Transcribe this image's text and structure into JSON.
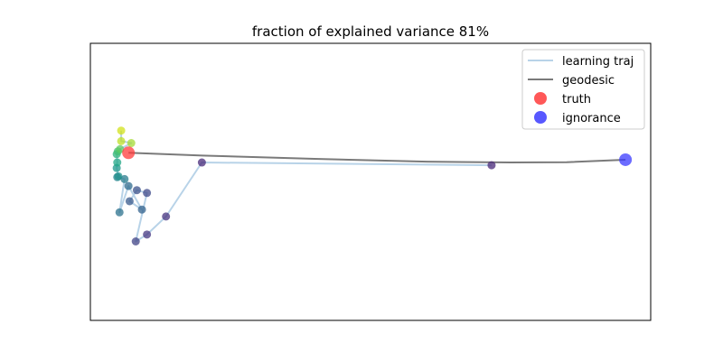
{
  "chart_data": {
    "type": "scatter",
    "title": "fraction of explained variance 81%",
    "xlabel": "",
    "ylabel": "",
    "xlim": [
      0,
      100
    ],
    "ylim": [
      0,
      100
    ],
    "grid": false,
    "ticks_visible": false,
    "legend": {
      "placement": "top-right",
      "entries": [
        {
          "label": "learning traj",
          "kind": "line",
          "color": "#b8d3e8"
        },
        {
          "label": "geodesic",
          "kind": "line",
          "color": "#7a7a7a"
        },
        {
          "label": "truth",
          "kind": "marker",
          "color": "#ff3b3b"
        },
        {
          "label": "ignorance",
          "kind": "marker",
          "color": "#3b3bff"
        }
      ]
    },
    "series": [
      {
        "name": "learning traj",
        "type": "line",
        "color": "#b8d3e8",
        "x": [
          71.6,
          19.9,
          13.5,
          10.1,
          8.1,
          10.1,
          8.3,
          7.0,
          9.2,
          6.8,
          5.2,
          6.1,
          4.8,
          5.0,
          4.7,
          4.8,
          4.7,
          4.9,
          5.3,
          7.3,
          5.5,
          5.5
        ],
        "y": [
          56.0,
          57.0,
          37.5,
          31.0,
          28.5,
          46.0,
          47.0,
          43.0,
          40.0,
          48.5,
          39.0,
          51.0,
          51.7,
          52.0,
          55.0,
          57.0,
          60.0,
          61.0,
          61.8,
          64.0,
          64.7,
          68.5
        ]
      },
      {
        "name": "learning traj points",
        "type": "scatter",
        "colors": [
          "#482878",
          "#482a7a",
          "#46337f",
          "#453781",
          "#414487",
          "#3e4989",
          "#3b528b",
          "#38598c",
          "#33638d",
          "#2f6b8e",
          "#2c728e",
          "#287c8e",
          "#25838e",
          "#21918c",
          "#1f988b",
          "#22a785",
          "#2eb37c",
          "#44bf70",
          "#5ec962",
          "#a5db36",
          "#bddf26",
          "#d2e21b"
        ],
        "x": [
          71.6,
          19.9,
          13.5,
          10.1,
          8.1,
          10.1,
          8.3,
          7.0,
          9.2,
          6.8,
          5.2,
          6.1,
          4.8,
          5.0,
          4.7,
          4.8,
          4.7,
          4.9,
          5.3,
          7.3,
          5.5,
          5.5
        ],
        "y": [
          56.0,
          57.0,
          37.5,
          31.0,
          28.5,
          46.0,
          47.0,
          43.0,
          40.0,
          48.5,
          39.0,
          51.0,
          51.7,
          52.0,
          55.0,
          57.0,
          60.0,
          61.0,
          61.8,
          64.0,
          64.7,
          68.5
        ]
      },
      {
        "name": "geodesic",
        "type": "line",
        "color": "#7a7a7a",
        "x": [
          6.8,
          20,
          40,
          60,
          75,
          85,
          95.5
        ],
        "y": [
          60.5,
          59.5,
          58.3,
          57.3,
          57.0,
          57.1,
          58.0
        ]
      },
      {
        "name": "truth",
        "type": "scatter",
        "color": "#ff3b3b",
        "x": [
          6.8
        ],
        "y": [
          60.5
        ]
      },
      {
        "name": "ignorance",
        "type": "scatter",
        "color": "#3b3bff",
        "x": [
          95.5
        ],
        "y": [
          58.0
        ]
      }
    ]
  }
}
